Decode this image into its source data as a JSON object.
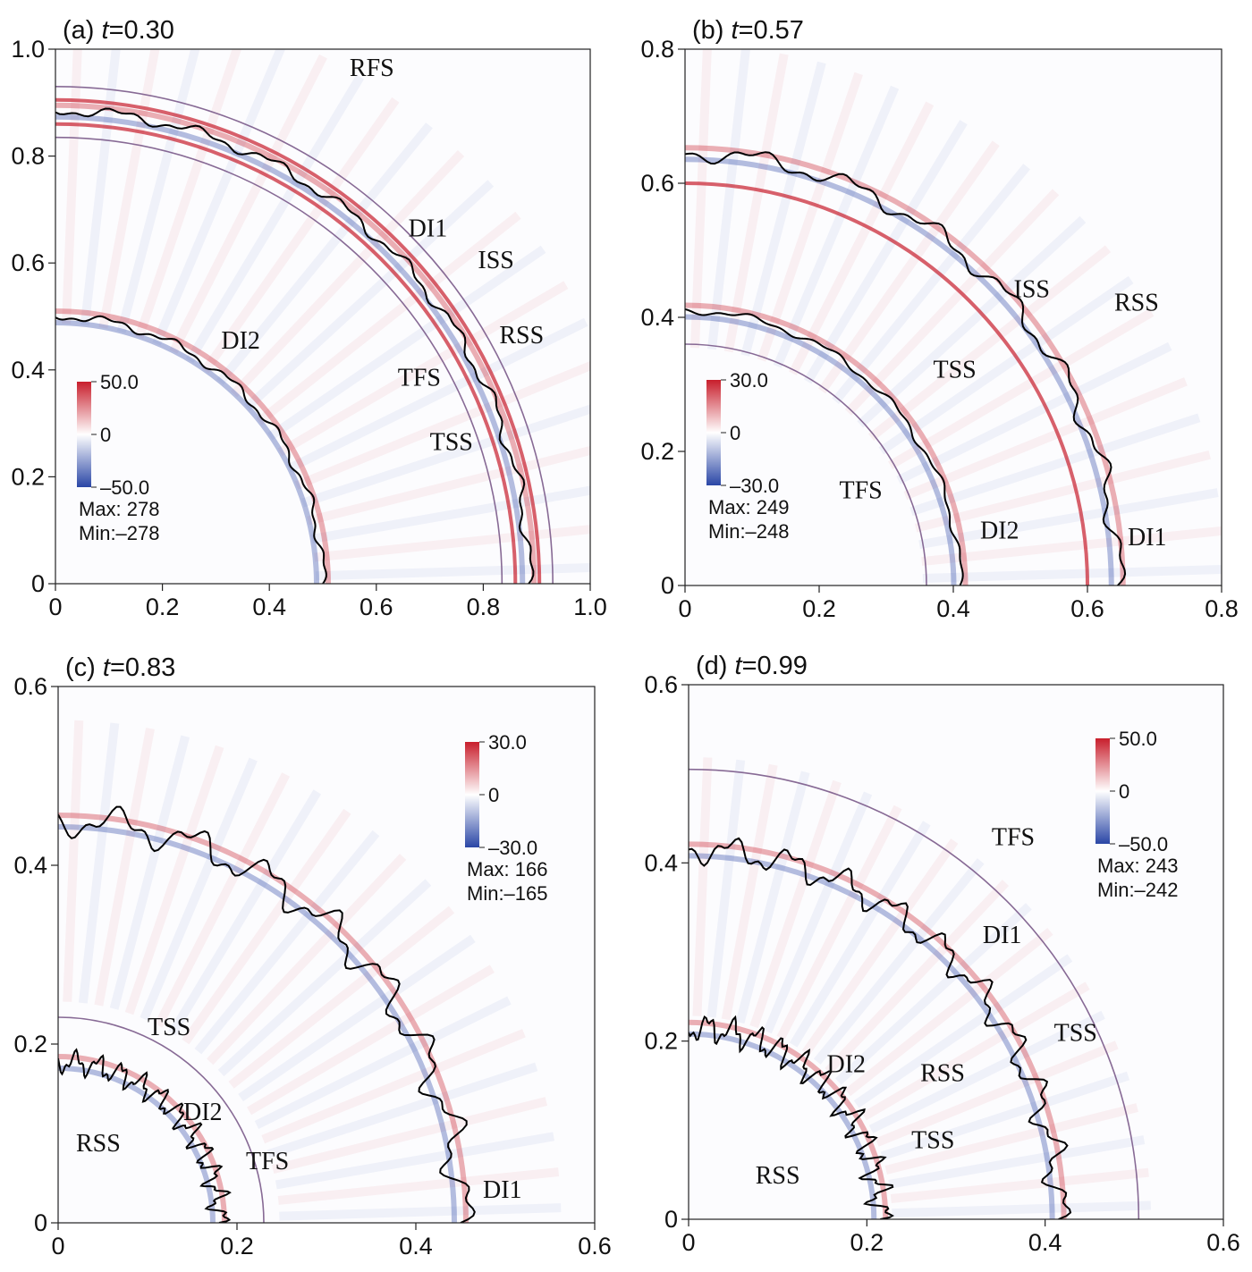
{
  "colors": {
    "positive": "#c81e2c",
    "negative": "#2a46a6",
    "zero": "#ffffff",
    "interface": "#000000"
  },
  "chart_data": [
    {
      "type": "heatmap",
      "panel_label": "(a)",
      "time_label": "t",
      "time_value": "=0.30",
      "xlim": [
        0,
        1.0
      ],
      "ylim": [
        0,
        1.0
      ],
      "xticks": [
        "0",
        "0.2",
        "0.4",
        "0.6",
        "0.8",
        "1.0"
      ],
      "yticks": [
        "0",
        "0.2",
        "0.4",
        "0.6",
        "0.8",
        "1.0"
      ],
      "colorbar": {
        "labels": [
          "50.0",
          "0",
          "–50.0"
        ],
        "range": [
          -50,
          50
        ]
      },
      "max_text": "Max: 278",
      "min_text": "Min:–278",
      "annotations": [
        {
          "text": "RFS",
          "x": 0.55,
          "y": 0.95
        },
        {
          "text": "DI1",
          "x": 0.66,
          "y": 0.65
        },
        {
          "text": "ISS",
          "x": 0.79,
          "y": 0.59
        },
        {
          "text": "DI2",
          "x": 0.31,
          "y": 0.44
        },
        {
          "text": "RSS",
          "x": 0.83,
          "y": 0.45
        },
        {
          "text": "TFS",
          "x": 0.64,
          "y": 0.37
        },
        {
          "text": "TSS",
          "x": 0.7,
          "y": 0.25
        }
      ],
      "interfaces": [
        {
          "name": "DI1",
          "radius": 0.885,
          "amp": 0.008,
          "freq": 18
        },
        {
          "name": "DI2",
          "radius": 0.5,
          "amp": 0.006,
          "freq": 12
        }
      ],
      "shock_arcs": [
        {
          "radius": 0.835,
          "type": "line"
        },
        {
          "radius": 0.905,
          "type": "pos"
        },
        {
          "radius": 0.86,
          "type": "pos"
        },
        {
          "radius": 0.93,
          "type": "line"
        }
      ]
    },
    {
      "type": "heatmap",
      "panel_label": "(b)",
      "time_label": "t",
      "time_value": "=0.57",
      "xlim": [
        0,
        0.8
      ],
      "ylim": [
        0,
        0.8
      ],
      "xticks": [
        "0",
        "0.2",
        "0.4",
        "0.6",
        "0.8"
      ],
      "yticks": [
        "0",
        "0.2",
        "0.4",
        "0.6",
        "0.8"
      ],
      "colorbar": {
        "labels": [
          "30.0",
          "0",
          "–30.0"
        ],
        "range": [
          -30,
          30
        ]
      },
      "max_text": "Max: 249",
      "min_text": "Min:–248",
      "annotations": [
        {
          "text": "ISS",
          "x": 0.49,
          "y": 0.43
        },
        {
          "text": "RSS",
          "x": 0.64,
          "y": 0.41
        },
        {
          "text": "TSS",
          "x": 0.37,
          "y": 0.31
        },
        {
          "text": "TFS",
          "x": 0.23,
          "y": 0.13
        },
        {
          "text": "DI2",
          "x": 0.44,
          "y": 0.07
        },
        {
          "text": "DI1",
          "x": 0.66,
          "y": 0.06
        }
      ],
      "interfaces": [
        {
          "name": "DI1",
          "radius": 0.645,
          "amp": 0.01,
          "freq": 14
        },
        {
          "name": "DI2",
          "radius": 0.41,
          "amp": 0.004,
          "freq": 10
        }
      ],
      "shock_arcs": [
        {
          "radius": 0.36,
          "type": "line"
        },
        {
          "radius": 0.6,
          "type": "pos"
        }
      ]
    },
    {
      "type": "heatmap",
      "panel_label": "(c)",
      "time_label": "t",
      "time_value": "=0.83",
      "xlim": [
        0,
        0.6
      ],
      "ylim": [
        0,
        0.6
      ],
      "xticks": [
        "0",
        "0.2",
        "0.4",
        "0.6"
      ],
      "yticks": [
        "0",
        "0.2",
        "0.4",
        "0.6"
      ],
      "colorbar": {
        "labels": [
          "30.0",
          "0",
          "–30.0"
        ],
        "range": [
          -30,
          30
        ]
      },
      "max_text": "Max: 166",
      "min_text": "Min:–165",
      "annotations": [
        {
          "text": "TSS",
          "x": 0.1,
          "y": 0.21
        },
        {
          "text": "RSS",
          "x": 0.02,
          "y": 0.08
        },
        {
          "text": "DI2",
          "x": 0.14,
          "y": 0.115
        },
        {
          "text": "TFS",
          "x": 0.21,
          "y": 0.06
        },
        {
          "text": "DI1",
          "x": 0.475,
          "y": 0.028
        }
      ],
      "interfaces": [
        {
          "name": "DI1",
          "radius": 0.45,
          "amp": 0.014,
          "freq": 16
        },
        {
          "name": "DI2",
          "radius": 0.18,
          "amp": 0.01,
          "freq": 22
        }
      ],
      "shock_arcs": [
        {
          "radius": 0.23,
          "type": "line"
        }
      ]
    },
    {
      "type": "heatmap",
      "panel_label": "(d)",
      "time_label": "t",
      "time_value": "=0.99",
      "xlim": [
        0,
        0.6
      ],
      "ylim": [
        0,
        0.6
      ],
      "xticks": [
        "0",
        "0.2",
        "0.4",
        "0.6"
      ],
      "yticks": [
        "0",
        "0.2",
        "0.4",
        "0.6"
      ],
      "colorbar": {
        "labels": [
          "50.0",
          "0",
          "–50.0"
        ],
        "range": [
          -50,
          50
        ]
      },
      "max_text": "Max: 243",
      "min_text": "Min:–242",
      "annotations": [
        {
          "text": "TFS",
          "x": 0.34,
          "y": 0.42
        },
        {
          "text": "DI1",
          "x": 0.33,
          "y": 0.31
        },
        {
          "text": "TSS",
          "x": 0.41,
          "y": 0.2
        },
        {
          "text": "RSS",
          "x": 0.26,
          "y": 0.155
        },
        {
          "text": "DI2",
          "x": 0.155,
          "y": 0.165
        },
        {
          "text": "TSS",
          "x": 0.25,
          "y": 0.08
        },
        {
          "text": "RSS",
          "x": 0.075,
          "y": 0.04
        }
      ],
      "interfaces": [
        {
          "name": "DI1",
          "radius": 0.415,
          "amp": 0.012,
          "freq": 20
        },
        {
          "name": "DI2",
          "radius": 0.215,
          "amp": 0.012,
          "freq": 24
        }
      ],
      "shock_arcs": [
        {
          "radius": 0.505,
          "type": "line"
        }
      ]
    }
  ]
}
